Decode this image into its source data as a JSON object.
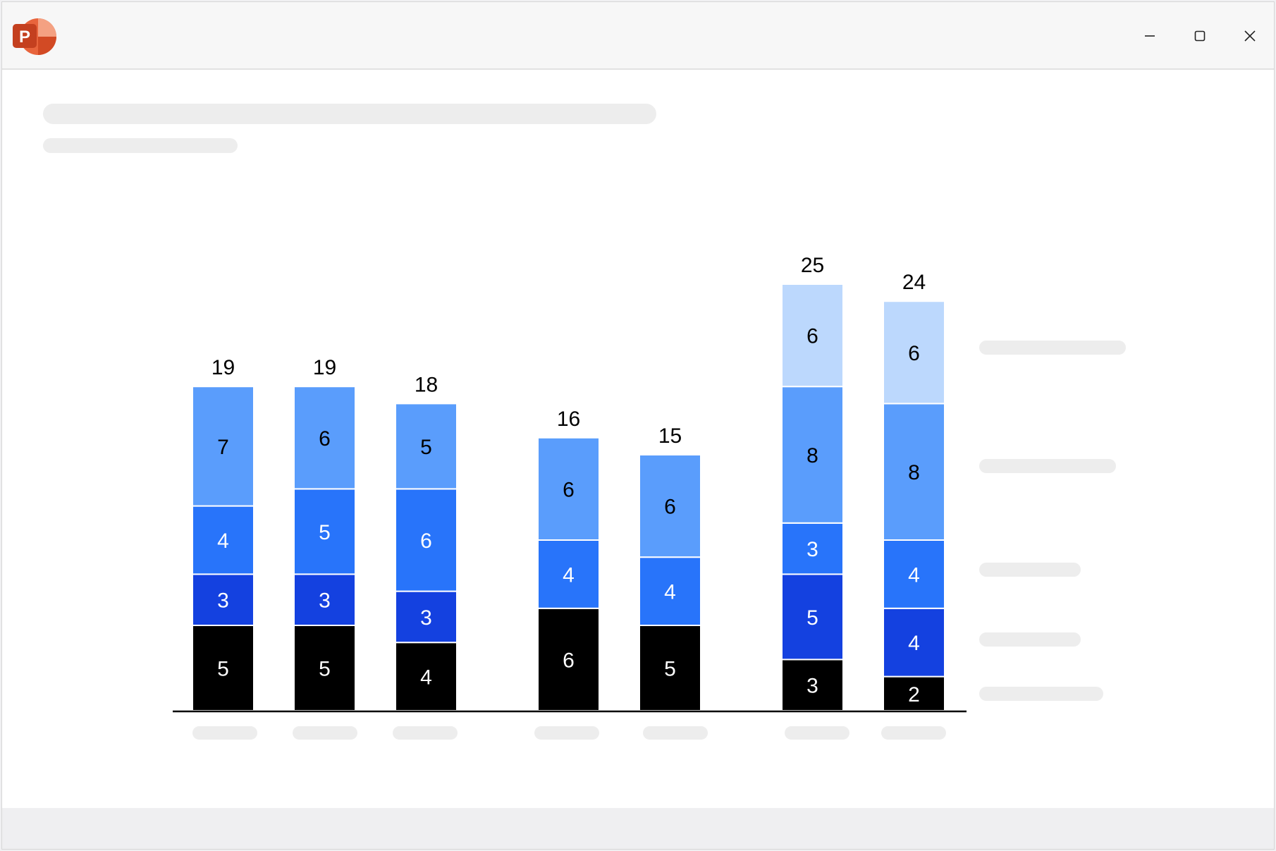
{
  "window": {
    "app_icon": "powerpoint-icon",
    "app_icon_letter": "P",
    "controls": [
      "minimize-icon",
      "maximize-icon",
      "close-icon"
    ]
  },
  "colors": {
    "segment_1": "#000000",
    "segment_2": "#1441e0",
    "segment_3": "#2874fa",
    "segment_4": "#5a9dfc",
    "segment_5": "#bcd8fd",
    "placeholder": "#ededed",
    "axis": "#000000"
  },
  "chart_data": {
    "type": "bar",
    "stacked": true,
    "categories": [
      "",
      "",
      "",
      "",
      "",
      "",
      ""
    ],
    "groups": [
      [
        0,
        1,
        2
      ],
      [
        3,
        4
      ],
      [
        5,
        6
      ]
    ],
    "totals": [
      19,
      19,
      18,
      16,
      15,
      25,
      24
    ],
    "series": [
      {
        "values": [
          5,
          5,
          4,
          6,
          5,
          3,
          2
        ]
      },
      {
        "values": [
          3,
          3,
          3,
          0,
          0,
          5,
          4
        ]
      },
      {
        "values": [
          4,
          5,
          6,
          4,
          4,
          3,
          4
        ]
      },
      {
        "values": [
          7,
          6,
          5,
          6,
          6,
          8,
          8
        ]
      },
      {
        "values": [
          0,
          0,
          0,
          0,
          0,
          6,
          6
        ]
      }
    ],
    "ylim": [
      0,
      25
    ],
    "legend_position": "right",
    "grid": false,
    "title": "",
    "xlabel": "",
    "ylabel": ""
  }
}
